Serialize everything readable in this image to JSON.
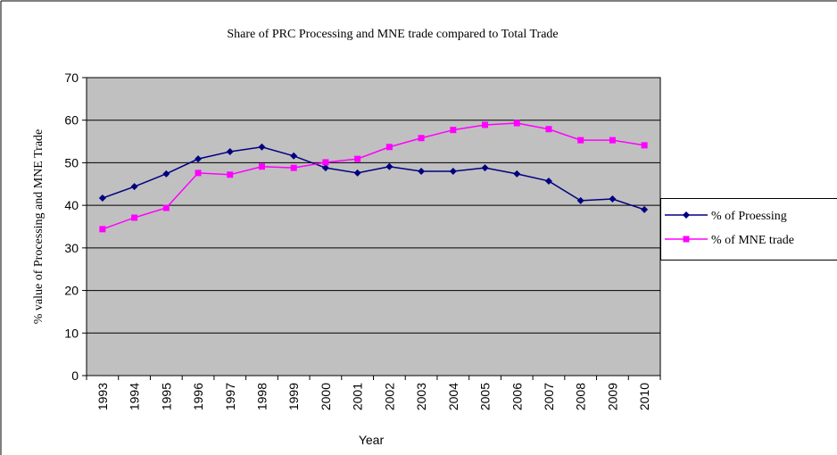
{
  "chart_data": {
    "type": "line",
    "title": "Share of PRC Processing and MNE trade compared to Total Trade",
    "x_label": "Year",
    "y_label": "% value of Processing and MNE Trade",
    "categories": [
      "1993",
      "1994",
      "1995",
      "1996",
      "1997",
      "1998",
      "1999",
      "2000",
      "2001",
      "2002",
      "2003",
      "2004",
      "2005",
      "2006",
      "2007",
      "2008",
      "2009",
      "2010"
    ],
    "series": [
      {
        "name": "% of Proessing",
        "color": "#000080",
        "marker": "diamond",
        "values": [
          41.7,
          44.4,
          47.4,
          50.9,
          52.6,
          53.7,
          51.6,
          48.8,
          47.6,
          49.1,
          48.0,
          48.0,
          48.8,
          47.4,
          45.7,
          41.1,
          41.5,
          39.0
        ]
      },
      {
        "name": "% of MNE trade",
        "color": "#ff00ff",
        "marker": "square",
        "values": [
          34.4,
          37.1,
          39.4,
          47.6,
          47.2,
          49.1,
          48.8,
          50.1,
          50.9,
          53.7,
          55.8,
          57.7,
          58.9,
          59.3,
          57.9,
          55.3,
          55.3,
          54.1
        ]
      }
    ],
    "ylim": [
      0,
      70
    ],
    "yticks": [
      0,
      10,
      20,
      30,
      40,
      50,
      60,
      70
    ],
    "grid": true,
    "legend": "right",
    "plot_background": "#c0c0c0"
  }
}
